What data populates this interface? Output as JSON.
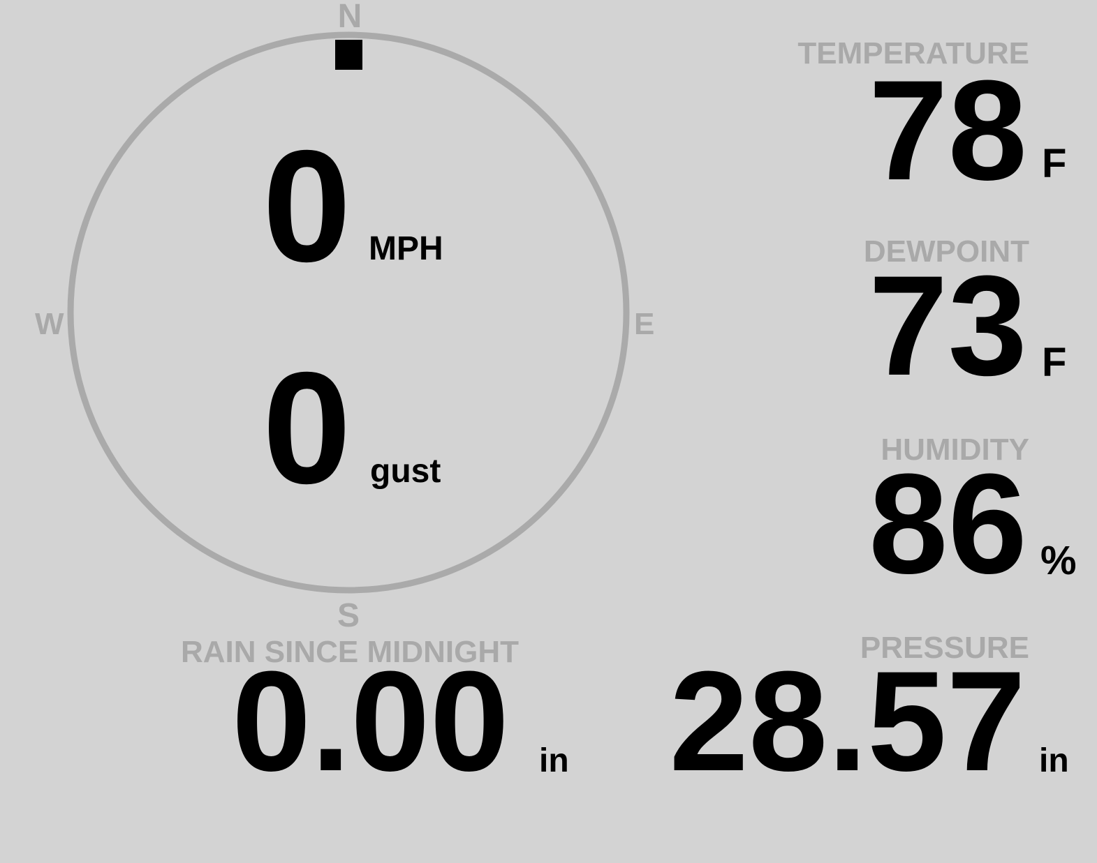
{
  "wind": {
    "speed": "0",
    "speed_unit": "MPH",
    "gust": "0",
    "gust_unit": "gust",
    "direction_degrees": 0,
    "compass": {
      "n": "N",
      "s": "S",
      "e": "E",
      "w": "W"
    }
  },
  "temperature": {
    "label": "TEMPERATURE",
    "value": "78",
    "unit": "F"
  },
  "dewpoint": {
    "label": "DEWPOINT",
    "value": "73",
    "unit": "F"
  },
  "humidity": {
    "label": "HUMIDITY",
    "value": "86",
    "unit": "%"
  },
  "pressure": {
    "label": "PRESSURE",
    "value": "28.57",
    "unit": "in"
  },
  "rain": {
    "label": "RAIN SINCE MIDNIGHT",
    "value": "0.00",
    "unit": "in"
  },
  "colors": {
    "background": "#d3d3d3",
    "label": "#a9a9a9",
    "value": "#000000"
  }
}
